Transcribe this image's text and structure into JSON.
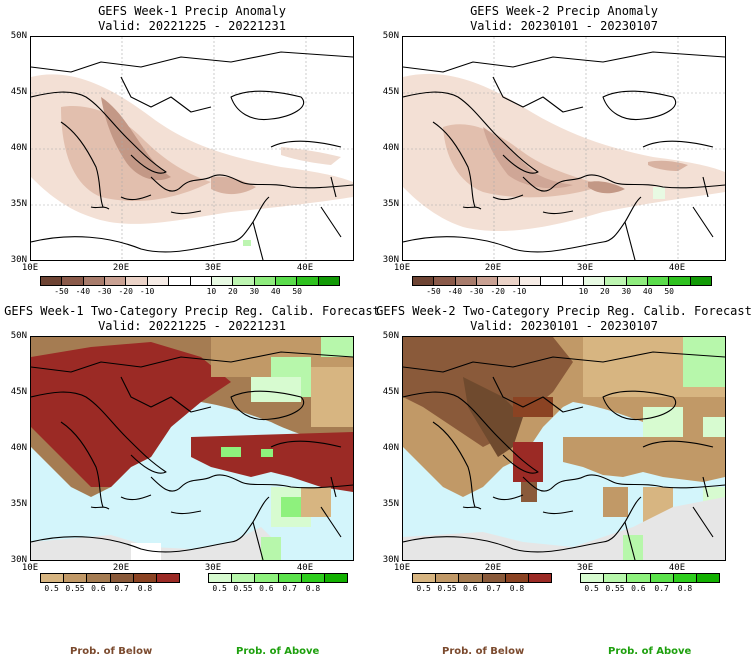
{
  "panels": [
    {
      "title1": "GEFS Week-1 Precip Anomaly",
      "title2": "Valid: 20221225 - 20221231"
    },
    {
      "title1": "GEFS Week-2 Precip Anomaly",
      "title2": "Valid: 20230101 - 20230107"
    },
    {
      "title1": "GEFS Week-1 Two-Category Precip Reg. Calib. Forecast",
      "title2": "Valid: 20221225 - 20221231"
    },
    {
      "title1": "GEFS Week-2 Two-Category Precip Reg. Calib. Forecast",
      "title2": "Valid: 20230101 - 20230107"
    }
  ],
  "lat_labels": [
    "50N",
    "45N",
    "40N",
    "35N",
    "30N"
  ],
  "lon_labels": [
    "10E",
    "20E",
    "30E",
    "40E"
  ],
  "anomaly_colorbar": {
    "ticks": [
      "-50",
      "-40",
      "-30",
      "-20",
      "-10",
      "10",
      "20",
      "30",
      "40",
      "50"
    ],
    "colors": [
      "#6e4434",
      "#8a5a4a",
      "#a87c6c",
      "#c9a193",
      "#ebd3c8",
      "#f6ece6",
      "#ffffff",
      "#ffffff",
      "#e8fae3",
      "#bdf5b1",
      "#8fec7e",
      "#5bdc4c",
      "#2fc11f",
      "#129a06"
    ]
  },
  "below_colorbar": {
    "ticks": [
      "0.5",
      "0.55",
      "0.6",
      "0.7",
      "0.8"
    ],
    "colors": [
      "#d7b581",
      "#c19967",
      "#a57c52",
      "#8a5a3a",
      "#8b4323",
      "#9b2a25"
    ]
  },
  "above_colorbar": {
    "ticks": [
      "0.5",
      "0.55",
      "0.6",
      "0.7",
      "0.8"
    ],
    "colors": [
      "#d7fbd0",
      "#b7f7ab",
      "#8ef17d",
      "#5be24b",
      "#2ece1d",
      "#12b000"
    ]
  },
  "prob_below_label": "Prob. of Below",
  "prob_above_label": "Prob. of Above",
  "colors": {
    "sea": "#d3f5fb",
    "prob_below_text": "#7b4a2e",
    "prob_above_text": "#1ea00e",
    "no_data": "#e6e6e6"
  }
}
